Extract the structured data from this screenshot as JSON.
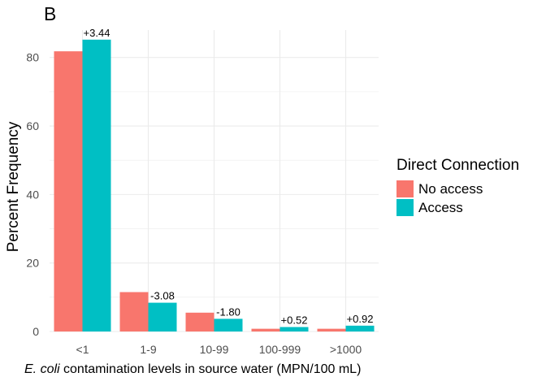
{
  "panel_tag": "B",
  "colors": {
    "no_access": "#F8766D",
    "access": "#00BFC4",
    "grid": "#ebebeb"
  },
  "chart_data": {
    "type": "bar",
    "categories": [
      "<1",
      "1-9",
      "10-99",
      "100-999",
      ">1000"
    ],
    "series": [
      {
        "name": "No access",
        "values": [
          81.8,
          11.5,
          5.5,
          0.8,
          0.8
        ]
      },
      {
        "name": "Access",
        "values": [
          85.2,
          8.4,
          3.7,
          1.3,
          1.7
        ]
      }
    ],
    "annotations": [
      "+3.44",
      "-3.08",
      "-1.80",
      "+0.52",
      "+0.92"
    ],
    "ylabel": "Percent Frequency",
    "xlabel_italic": "E. coli",
    "xlabel_rest": " contamination levels in source water (MPN/100 mL)",
    "ylim": [
      0,
      88
    ],
    "yticks": [
      0,
      20,
      40,
      60,
      80
    ],
    "grid": true,
    "legend": {
      "title": "Direct Connection",
      "placement": "right"
    }
  }
}
